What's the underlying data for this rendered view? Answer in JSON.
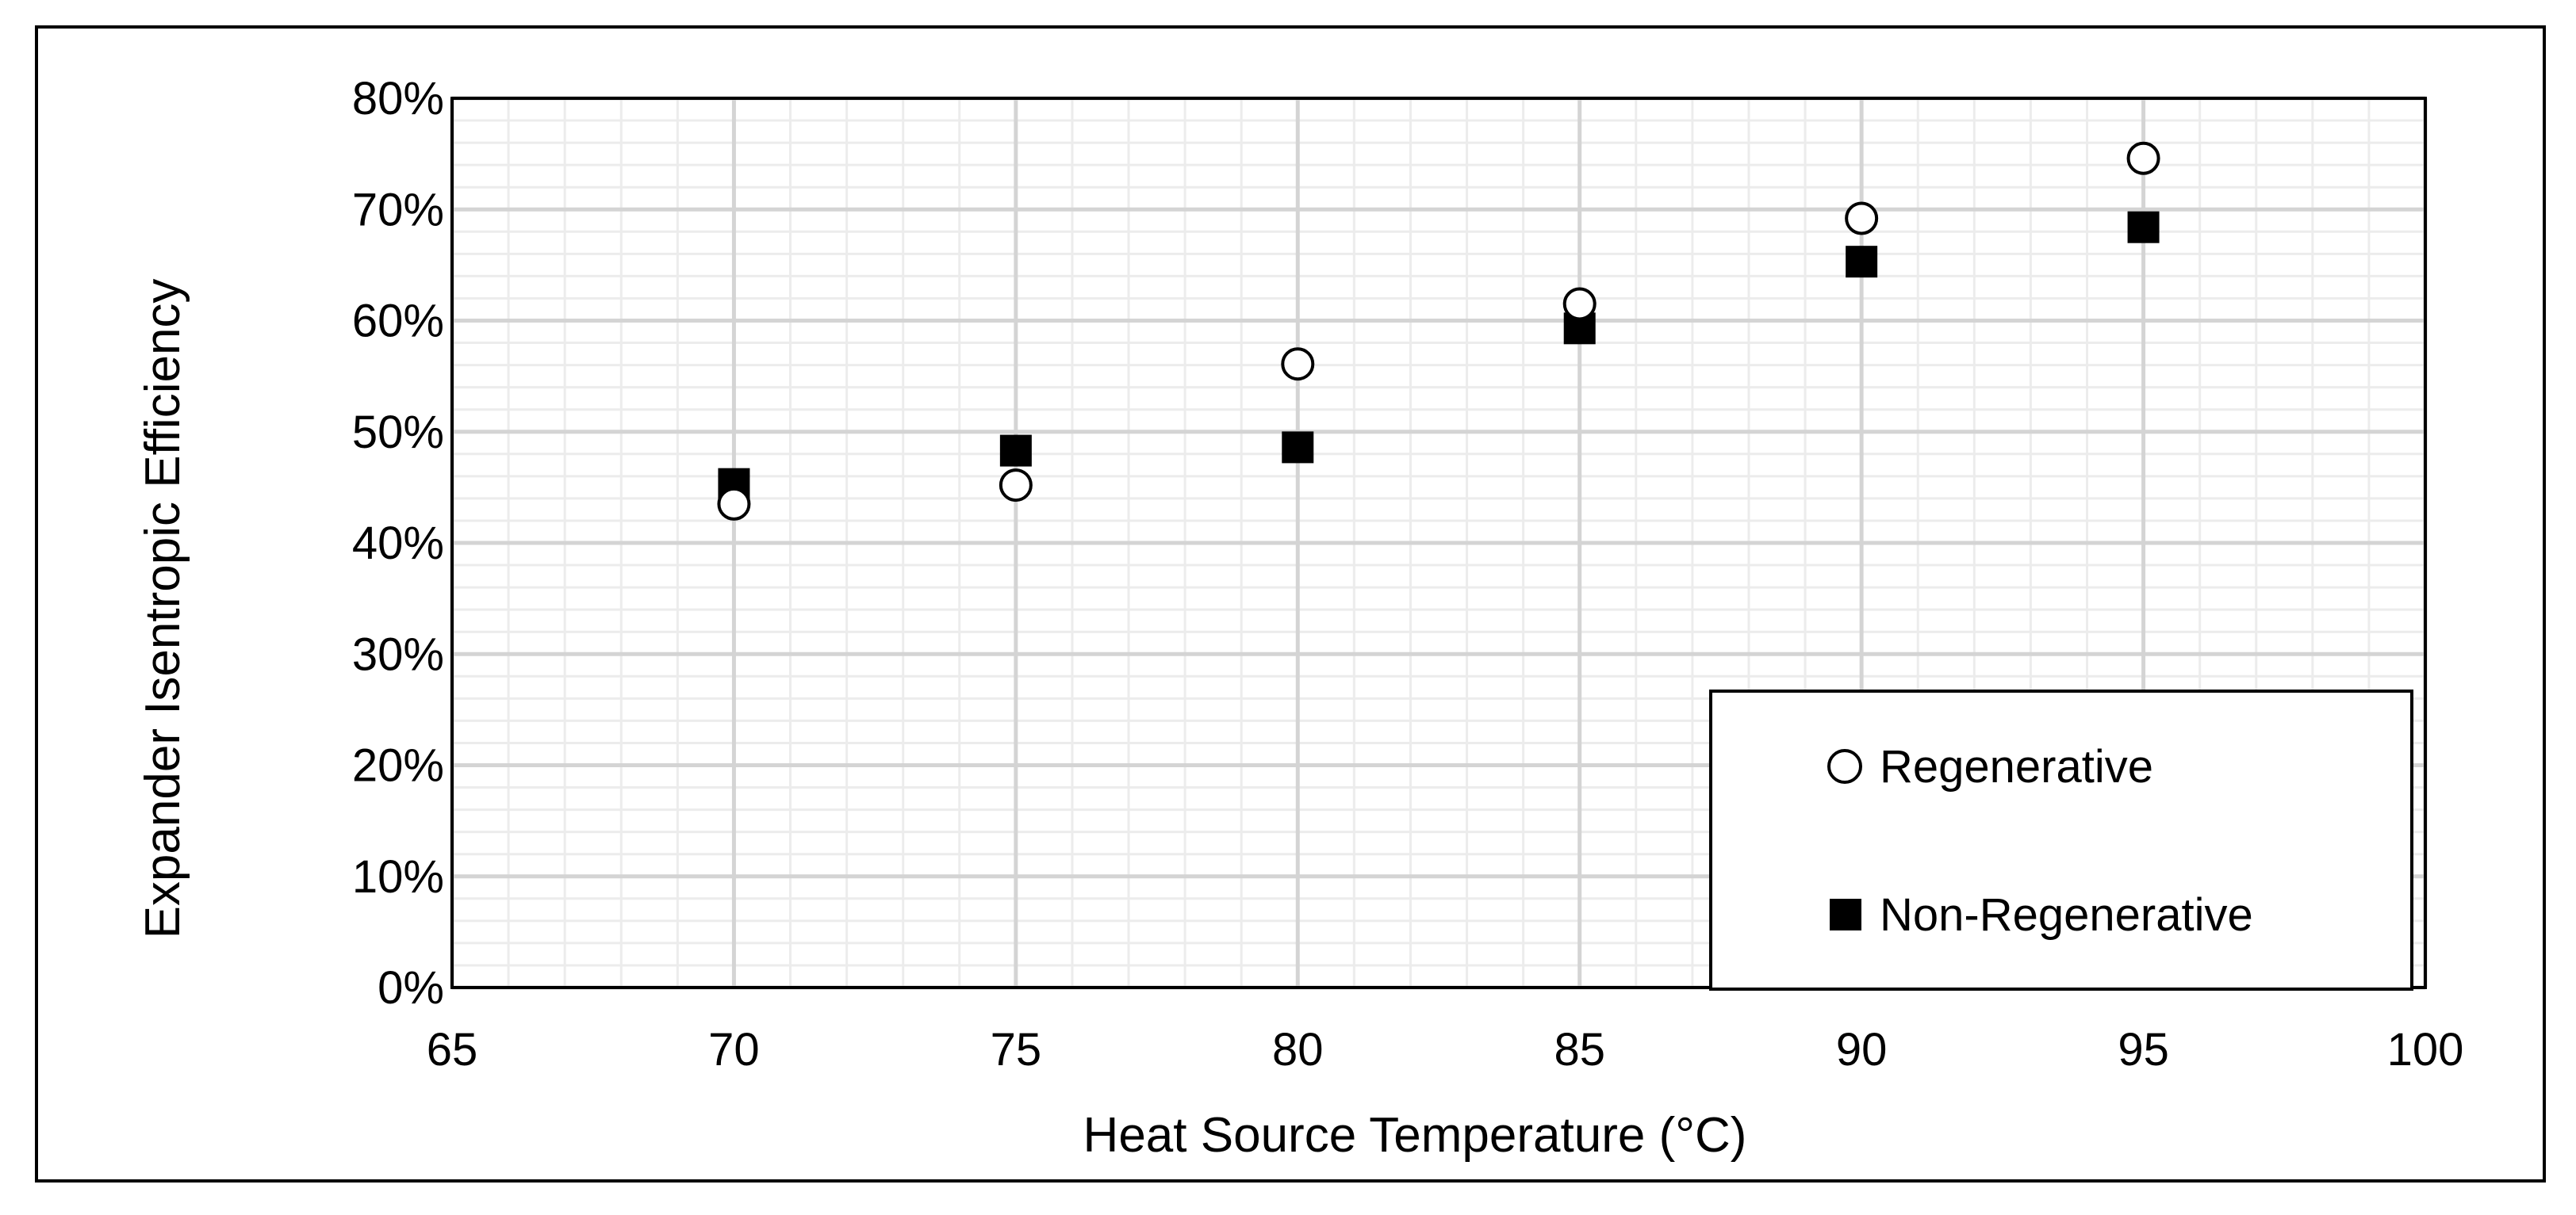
{
  "chart_data": {
    "type": "scatter",
    "title": "",
    "xlabel": "Heat Source Temperature (°C)",
    "ylabel": "Expander Isentropic Efficiency",
    "xlim": [
      65,
      100
    ],
    "ylim": [
      0,
      80
    ],
    "x_ticks": [
      65,
      70,
      75,
      80,
      85,
      90,
      95,
      100
    ],
    "y_ticks": [
      0,
      10,
      20,
      30,
      40,
      50,
      60,
      70,
      80
    ],
    "y_tick_format": "percent",
    "grid": true,
    "legend_position": "bottom-right",
    "series": [
      {
        "name": "Regenerative",
        "marker": "open-circle",
        "x": [
          70,
          75,
          80,
          85,
          90,
          95
        ],
        "y": [
          43.5,
          45.2,
          56.1,
          61.5,
          69.2,
          74.6
        ]
      },
      {
        "name": "Non-Regenerative",
        "marker": "filled-square",
        "x": [
          70,
          75,
          80,
          85,
          90,
          95
        ],
        "y": [
          45.3,
          48.3,
          48.6,
          59.3,
          65.3,
          68.4
        ]
      }
    ]
  },
  "colors": {
    "background": "#ffffff",
    "frame": "#000000",
    "major_grid": "#d4d4d4",
    "minor_grid": "#ececec",
    "marker": "#000000"
  }
}
